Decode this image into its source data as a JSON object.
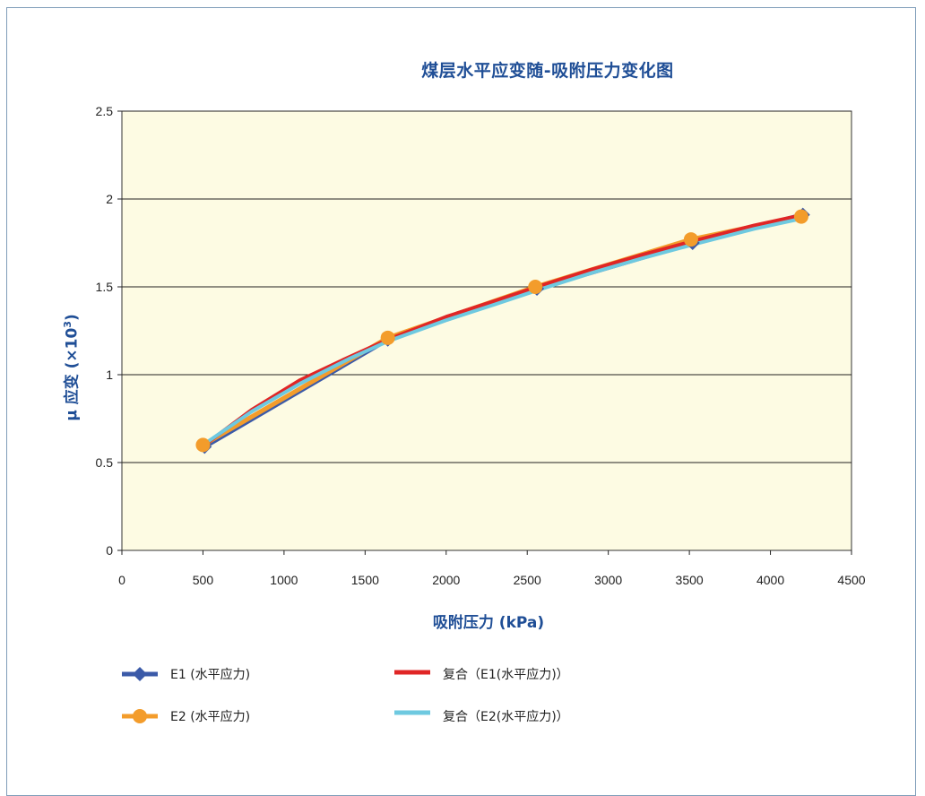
{
  "chart_data": {
    "type": "line",
    "title": "煤层水平应变随-吸附压力变化图",
    "xlabel": "吸附压力  (kPa)",
    "ylabel_main": "μ 应变  (×10",
    "ylabel_sup": "3",
    "ylabel_end": ")",
    "xlim": [
      0,
      4500
    ],
    "ylim": [
      0,
      2.5
    ],
    "xticks": [
      0,
      500,
      1000,
      1500,
      2000,
      2500,
      3000,
      3500,
      4000,
      4500
    ],
    "yticks": [
      0,
      0.5,
      1,
      1.5,
      2,
      2.5
    ],
    "ytick_labels": [
      "0",
      "0.5",
      "1",
      "1.5",
      "2",
      "2.5"
    ],
    "grid": "horizontal",
    "plot_background": "#fdfbe3",
    "series": [
      {
        "name": "E1 (水平应力)",
        "color": "#3b5aa8",
        "marker": "diamond",
        "x": [
          510,
          1640,
          2560,
          3520,
          4200
        ],
        "y": [
          0.59,
          1.2,
          1.49,
          1.75,
          1.91
        ]
      },
      {
        "name": "E2 (水平应力)",
        "color": "#f39c2b",
        "marker": "circle",
        "x": [
          500,
          1640,
          2550,
          3510,
          4190
        ],
        "y": [
          0.6,
          1.21,
          1.5,
          1.77,
          1.9
        ]
      },
      {
        "name": "复合（E1(水平应力)）",
        "color": "#e02626",
        "marker": "none",
        "x": [
          510,
          800,
          1100,
          1400,
          1640,
          2000,
          2300,
          2560,
          2900,
          3200,
          3520,
          3900,
          4200
        ],
        "y": [
          0.6,
          0.8,
          0.97,
          1.1,
          1.2,
          1.33,
          1.42,
          1.5,
          1.6,
          1.68,
          1.76,
          1.85,
          1.91
        ]
      },
      {
        "name": "复合（E2(水平应力)）",
        "color": "#6ec9e0",
        "marker": "none",
        "x": [
          500,
          800,
          1100,
          1400,
          1640,
          2000,
          2300,
          2560,
          2900,
          3200,
          3520,
          3900,
          4200
        ],
        "y": [
          0.6,
          0.79,
          0.95,
          1.09,
          1.19,
          1.31,
          1.4,
          1.48,
          1.58,
          1.66,
          1.74,
          1.83,
          1.89
        ]
      }
    ]
  },
  "legend": [
    {
      "label": "E1 (水平应力)",
      "color": "#3b5aa8",
      "marker": "diamond"
    },
    {
      "label": "复合（E1(水平应力)）",
      "color": "#e02626",
      "marker": "none"
    },
    {
      "label": "E2 (水平应力)",
      "color": "#f39c2b",
      "marker": "circle"
    },
    {
      "label": "复合（E2(水平应力)）",
      "color": "#6ec9e0",
      "marker": "none"
    }
  ]
}
